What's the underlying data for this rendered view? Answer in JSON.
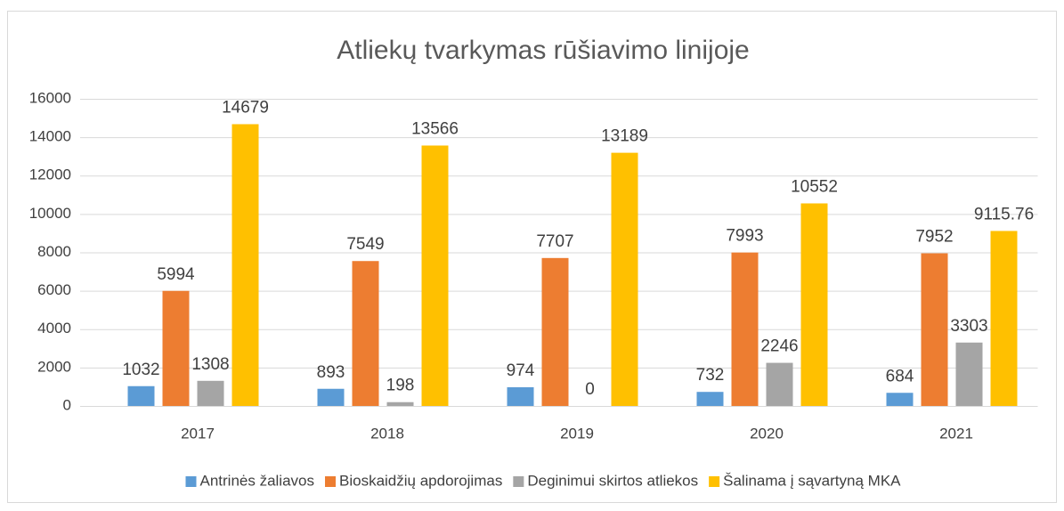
{
  "chart_data": {
    "type": "bar",
    "title": "Atliekų tvarkymas rūšiavimo linijoje",
    "categories": [
      "2017",
      "2018",
      "2019",
      "2020",
      "2021"
    ],
    "series": [
      {
        "name": "Antrinės žaliavos",
        "color": "#5b9bd5",
        "values": [
          1032,
          893,
          974,
          732,
          684
        ]
      },
      {
        "name": "Bioskaidžių apdorojimas",
        "color": "#ed7d31",
        "values": [
          5994,
          7549,
          7707,
          7993,
          7952
        ]
      },
      {
        "name": "Deginimui skirtos atliekos",
        "color": "#a5a5a5",
        "values": [
          1308,
          198,
          0,
          2246,
          3303
        ]
      },
      {
        "name": "Šalinama į sąvartyną MKA",
        "color": "#ffc000",
        "values": [
          14679,
          13566,
          13189,
          10552,
          9115.76
        ]
      }
    ],
    "ylim": [
      0,
      16000
    ],
    "yticks": [
      0,
      2000,
      4000,
      6000,
      8000,
      10000,
      12000,
      14000,
      16000
    ],
    "grid": true,
    "legend": "bottom"
  }
}
